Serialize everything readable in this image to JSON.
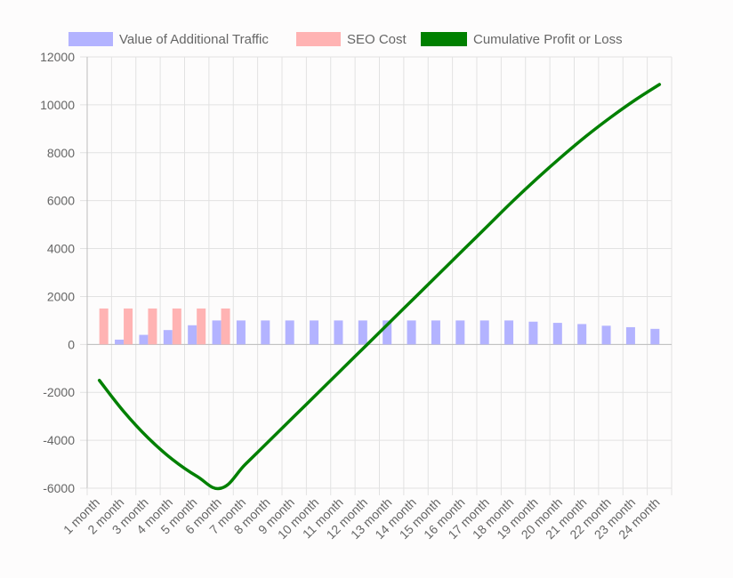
{
  "chart_data": {
    "type": "bar",
    "categories": [
      "1 month",
      "2 month",
      "3 month",
      "4 month",
      "5 month",
      "6 month",
      "7 month",
      "8 month",
      "9 month",
      "10 month",
      "11 month",
      "12 month",
      "13 month",
      "14 month",
      "15 month",
      "16 month",
      "17 month",
      "18 month",
      "19 month",
      "20 month",
      "21 month",
      "22 month",
      "23 month",
      "24 month"
    ],
    "series": [
      {
        "name": "Value of Additional Traffic",
        "kind": "bar",
        "color": "#b3b3ff",
        "values": [
          0,
          200,
          400,
          600,
          800,
          1000,
          1000,
          1000,
          1000,
          1000,
          1000,
          1000,
          1000,
          1000,
          1000,
          1000,
          1000,
          1000,
          950,
          900,
          850,
          780,
          720,
          650
        ]
      },
      {
        "name": "SEO Cost",
        "kind": "bar",
        "color": "#ffb3b3",
        "values": [
          1500,
          1500,
          1500,
          1500,
          1500,
          1500,
          0,
          0,
          0,
          0,
          0,
          0,
          0,
          0,
          0,
          0,
          0,
          0,
          0,
          0,
          0,
          0,
          0,
          0
        ]
      },
      {
        "name": "Cumulative Profit or Loss",
        "kind": "line",
        "color": "#008000",
        "values": [
          -1500,
          -2800,
          -3900,
          -4800,
          -5500,
          -6000,
          -5000,
          -4000,
          -3000,
          -2000,
          -1000,
          0,
          1000,
          2000,
          3000,
          4000,
          5000,
          6000,
          6950,
          7850,
          8700,
          9480,
          10200,
          10850
        ]
      }
    ],
    "ylim": [
      -6000,
      12000
    ],
    "yticks": [
      "12000",
      "10000",
      "8000",
      "6000",
      "4000",
      "2000",
      "0",
      "-2000",
      "-4000",
      "-6000"
    ],
    "grid": true,
    "legend_position": "top"
  }
}
